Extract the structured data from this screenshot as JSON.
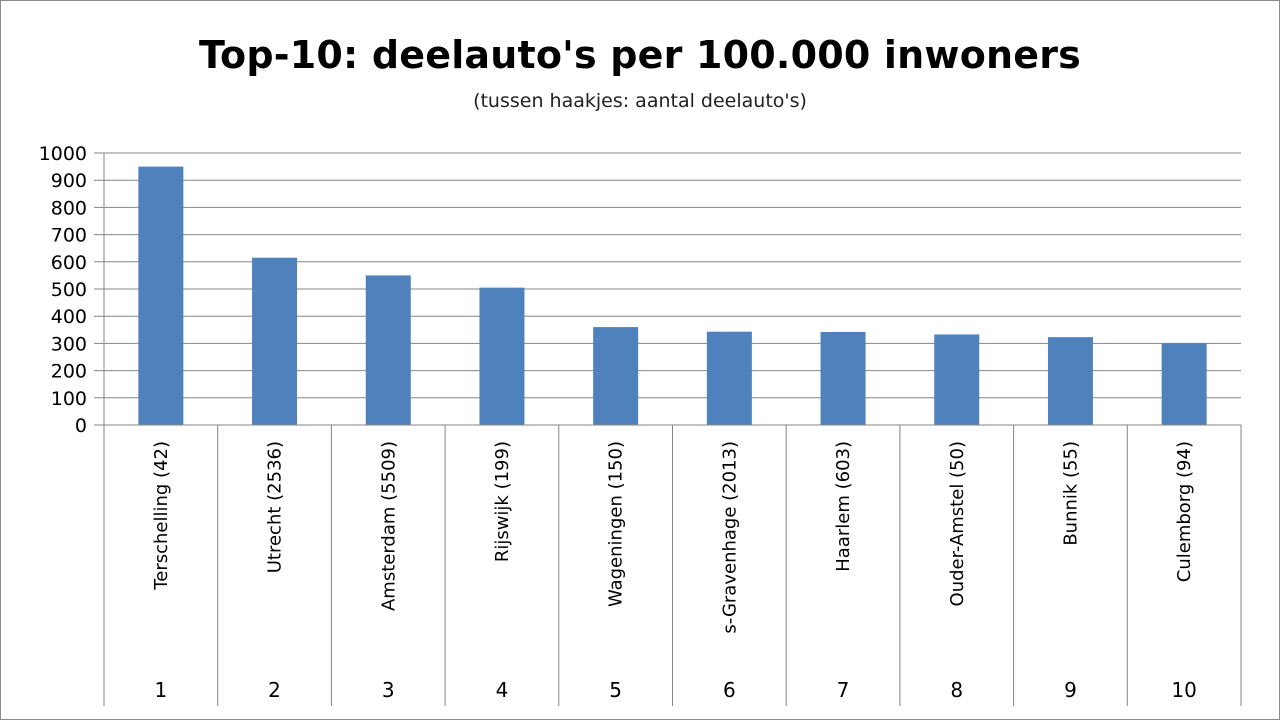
{
  "chart_data": {
    "type": "bar",
    "title": "Top-10: deelauto's per 100.000 inwoners",
    "subtitle": "(tussen haakjes: aantal deelauto's)",
    "categories": [
      "Terschelling  (42)",
      "Utrecht  (2536)",
      "Amsterdam (5509)",
      "Rijswijk  (199)",
      "Wageningen (150)",
      "s-Gravenhage (2013)",
      "Haarlem (603)",
      "Ouder-Amstel (50)",
      "Bunnik (55)",
      "Culemborg (94)"
    ],
    "ranks": [
      "1",
      "2",
      "3",
      "4",
      "5",
      "6",
      "7",
      "8",
      "9",
      "10"
    ],
    "values": [
      950,
      615,
      550,
      505,
      360,
      343,
      342,
      333,
      323,
      300
    ],
    "yticks": [
      0,
      100,
      200,
      300,
      400,
      500,
      600,
      700,
      800,
      900,
      1000
    ],
    "ylim": [
      0,
      1000
    ],
    "xlabel": "",
    "ylabel": "",
    "grid": true,
    "legend": "none",
    "bar_color": "#4f81bd",
    "grid_color": "#868686"
  }
}
